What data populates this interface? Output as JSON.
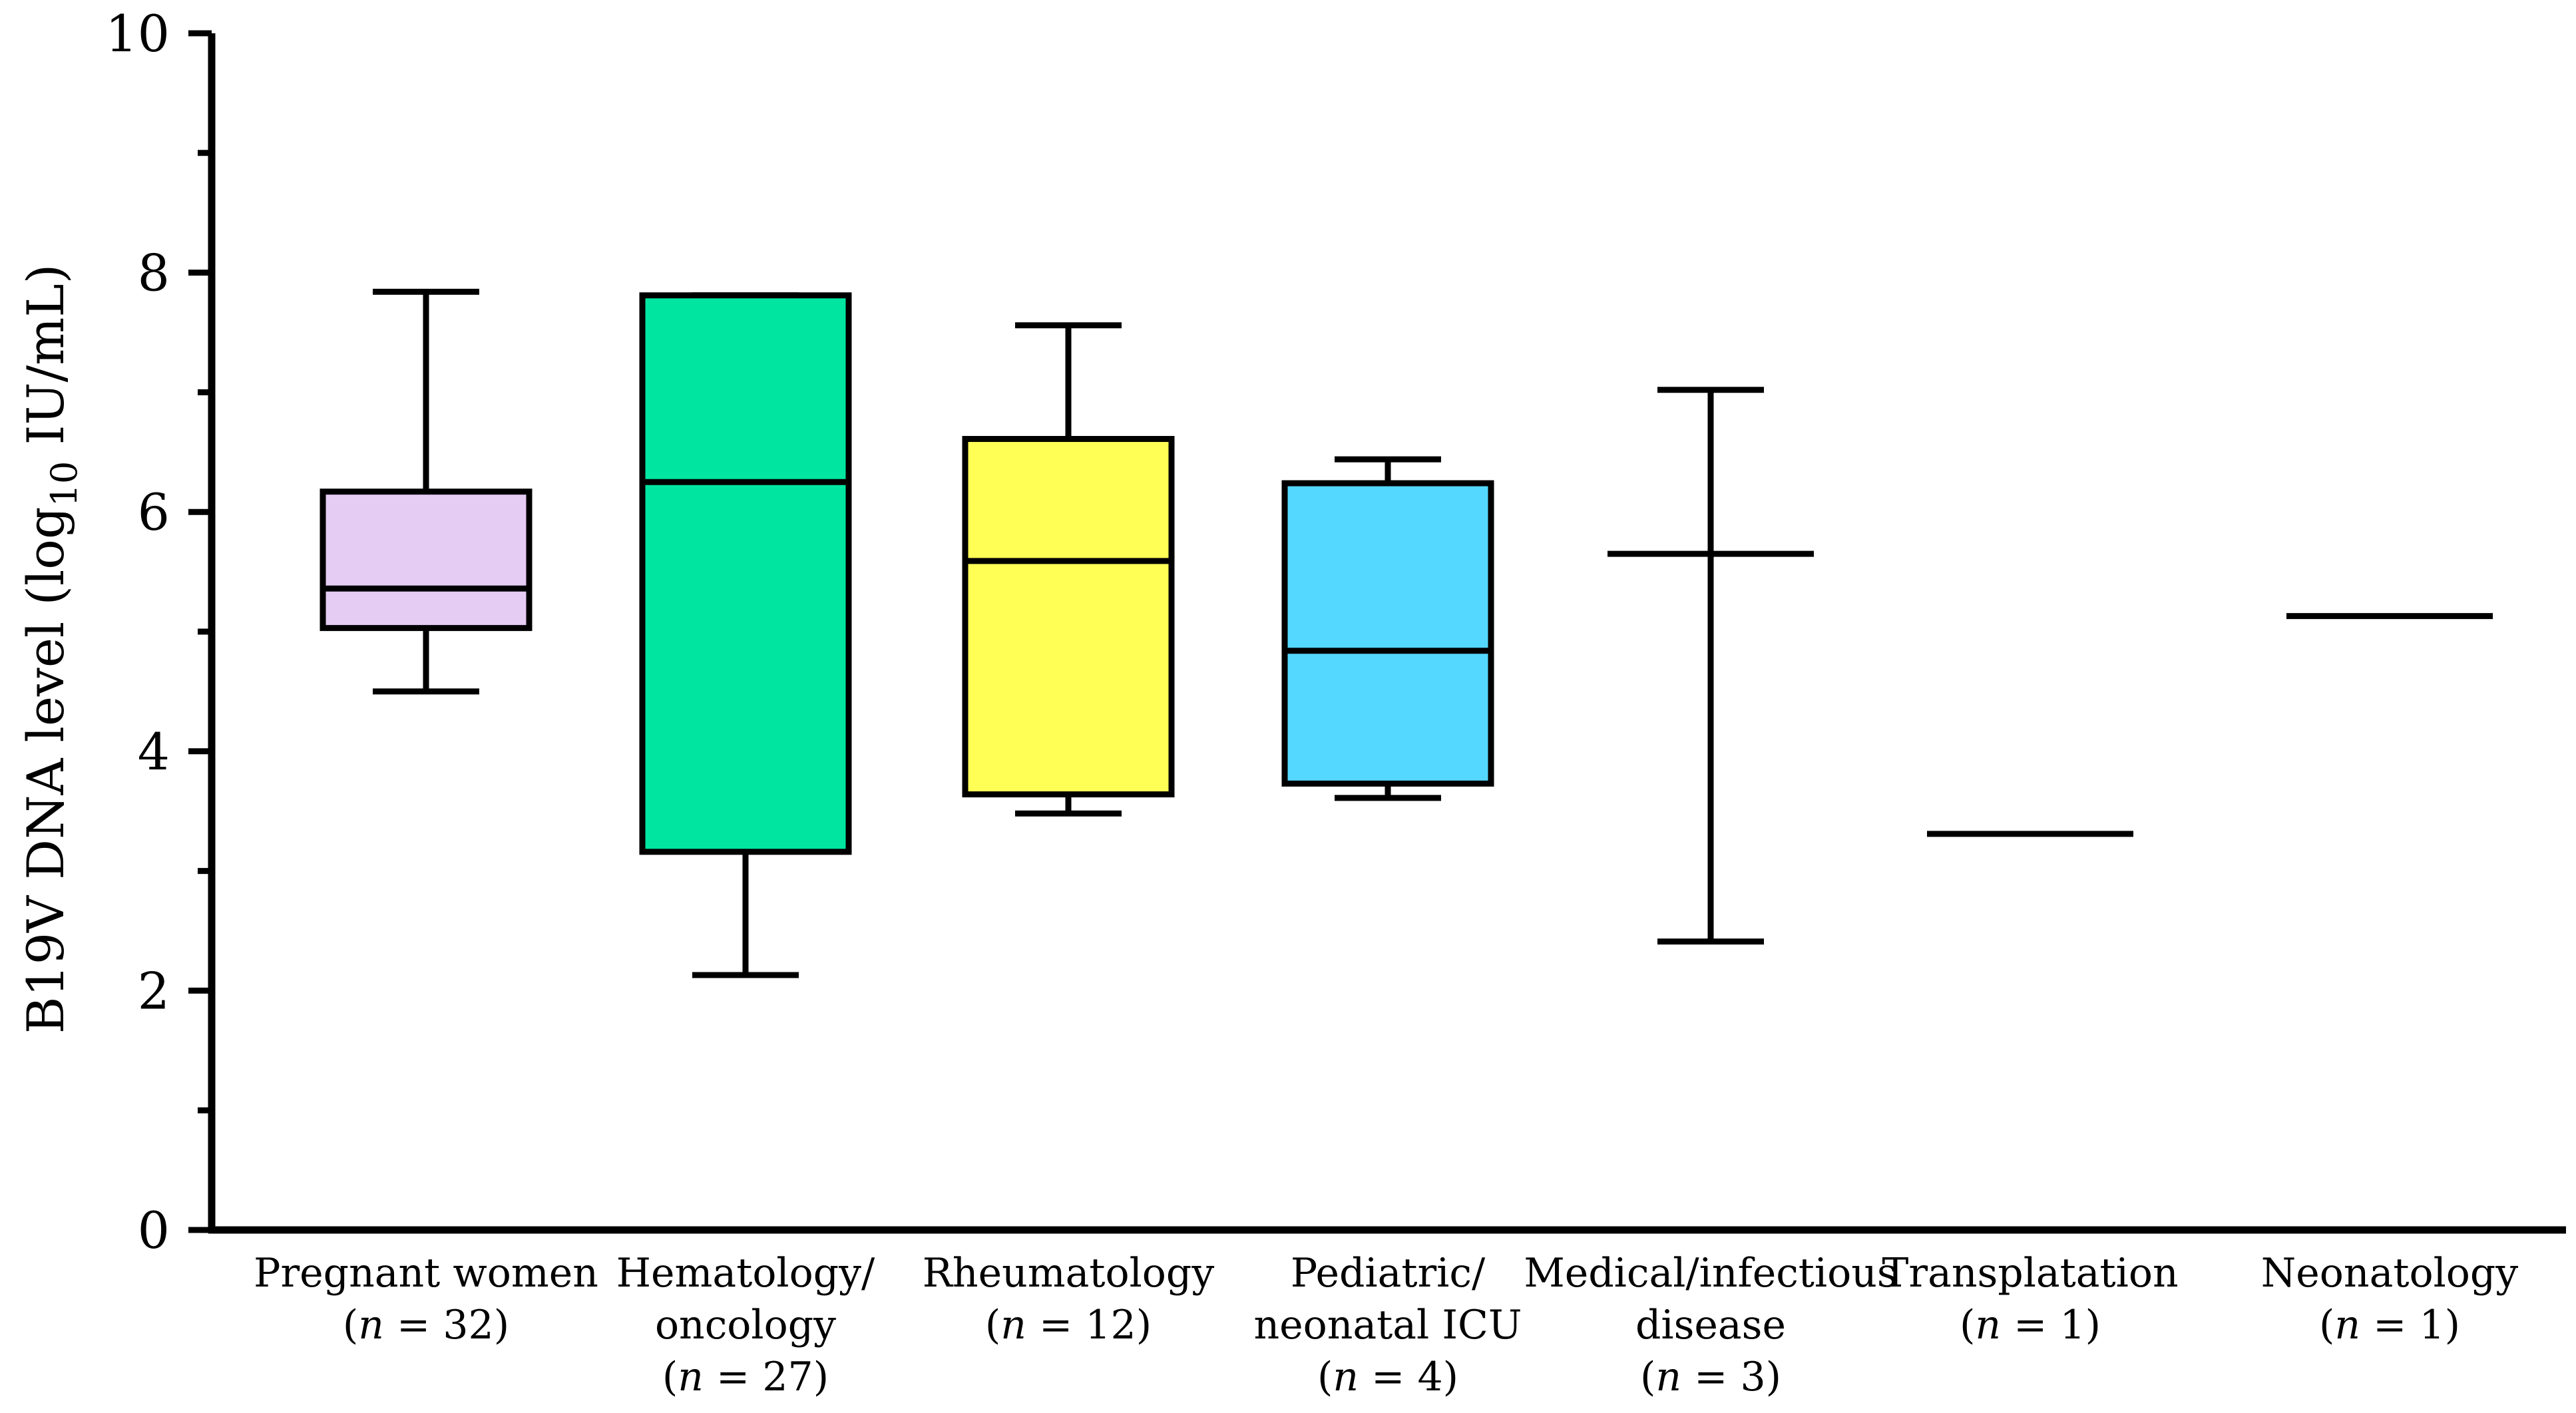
{
  "chart_data": {
    "type": "boxplot",
    "title": "",
    "xlabel": "",
    "ylabel": {
      "prefix": "B19V DNA level (log",
      "subscript": "10",
      "suffix": " IU/mL)"
    },
    "ylim": [
      0,
      10
    ],
    "yticks": [
      0,
      2,
      4,
      6,
      8,
      10
    ],
    "yminor_ticks": [
      1,
      3,
      5,
      7,
      9
    ],
    "categories": [
      {
        "label_lines": [
          "Pregnant women"
        ],
        "n_text": "32"
      },
      {
        "label_lines": [
          "Hematology/",
          "oncology"
        ],
        "n_text": "27"
      },
      {
        "label_lines": [
          "Rheumatology"
        ],
        "n_text": "12"
      },
      {
        "label_lines": [
          "Pediatric/",
          "neonatal ICU"
        ],
        "n_text": "4"
      },
      {
        "label_lines": [
          "Medical/infectious",
          "disease"
        ],
        "n_text": "3"
      },
      {
        "label_lines": [
          "Transplatation"
        ],
        "n_text": "1"
      },
      {
        "label_lines": [
          "Neonatology"
        ],
        "n_text": "1"
      }
    ],
    "n_prefix": "n",
    "n_equals": " = ",
    "series": [
      {
        "category": "Pregnant women",
        "min": 4.5,
        "q1": 5.03,
        "median": 5.36,
        "q3": 6.17,
        "max": 7.84,
        "color": "#e5ccf2"
      },
      {
        "category": "Hematology/oncology",
        "min": 2.13,
        "q1": 3.16,
        "median": 6.25,
        "q3": 7.81,
        "max": 7.81,
        "color": "#00e6a1"
      },
      {
        "category": "Rheumatology",
        "min": 3.48,
        "q1": 3.64,
        "median": 5.59,
        "q3": 6.61,
        "max": 7.56,
        "color": "#ffff55"
      },
      {
        "category": "Pediatric/neonatal ICU",
        "min": 3.61,
        "q1": 3.73,
        "median": 4.84,
        "q3": 6.24,
        "max": 6.44,
        "color": "#55d8ff"
      },
      {
        "category": "Medical/infectious disease",
        "min": 2.41,
        "q1": null,
        "median": 5.65,
        "q3": null,
        "max": 7.02,
        "color": null
      },
      {
        "category": "Transplatation",
        "min": null,
        "q1": null,
        "median": 3.31,
        "q3": null,
        "max": null,
        "color": null
      },
      {
        "category": "Neonatology",
        "min": null,
        "q1": null,
        "median": 5.13,
        "q3": null,
        "max": null,
        "color": null
      }
    ]
  }
}
